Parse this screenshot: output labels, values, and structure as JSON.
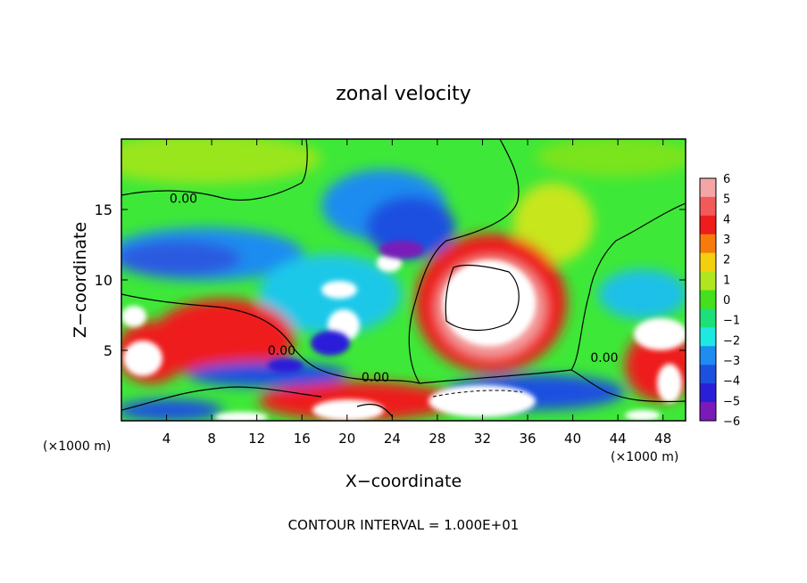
{
  "chart_data": {
    "type": "heatmap",
    "title": "zonal velocity",
    "xlabel": "X−coordinate",
    "ylabel": "Z−coordinate",
    "x_units_left": "(×1000 m)",
    "x_units_right": "(×1000 m)",
    "xlim": [
      0,
      50
    ],
    "ylim": [
      0,
      20
    ],
    "x_ticks": [
      4,
      8,
      12,
      16,
      20,
      24,
      28,
      32,
      36,
      40,
      44,
      48
    ],
    "y_ticks": [
      5,
      10,
      15
    ],
    "contour_labels": [
      {
        "text": "0.00",
        "x": 5.5,
        "y": 15.8
      },
      {
        "text": "0.00",
        "x": 14.2,
        "y": 5.0
      },
      {
        "text": "0.00",
        "x": 22.5,
        "y": 3.1
      },
      {
        "text": "0.00",
        "x": 42.8,
        "y": 4.5
      }
    ],
    "colorbar": {
      "ticks": [
        6,
        5,
        4,
        3,
        2,
        1,
        0,
        -1,
        -2,
        -3,
        -4,
        -5,
        -6
      ],
      "colors": [
        "#f4a6a6",
        "#f25a5a",
        "#ee1c1c",
        "#f77a0c",
        "#f2d010",
        "#b0e61e",
        "#44e01e",
        "#1ee07a",
        "#1ee8e0",
        "#1e8cf0",
        "#1e50e0",
        "#2a1ed8",
        "#7a1ab8"
      ]
    },
    "footer": "CONTOUR INTERVAL =  1.000E+01"
  }
}
